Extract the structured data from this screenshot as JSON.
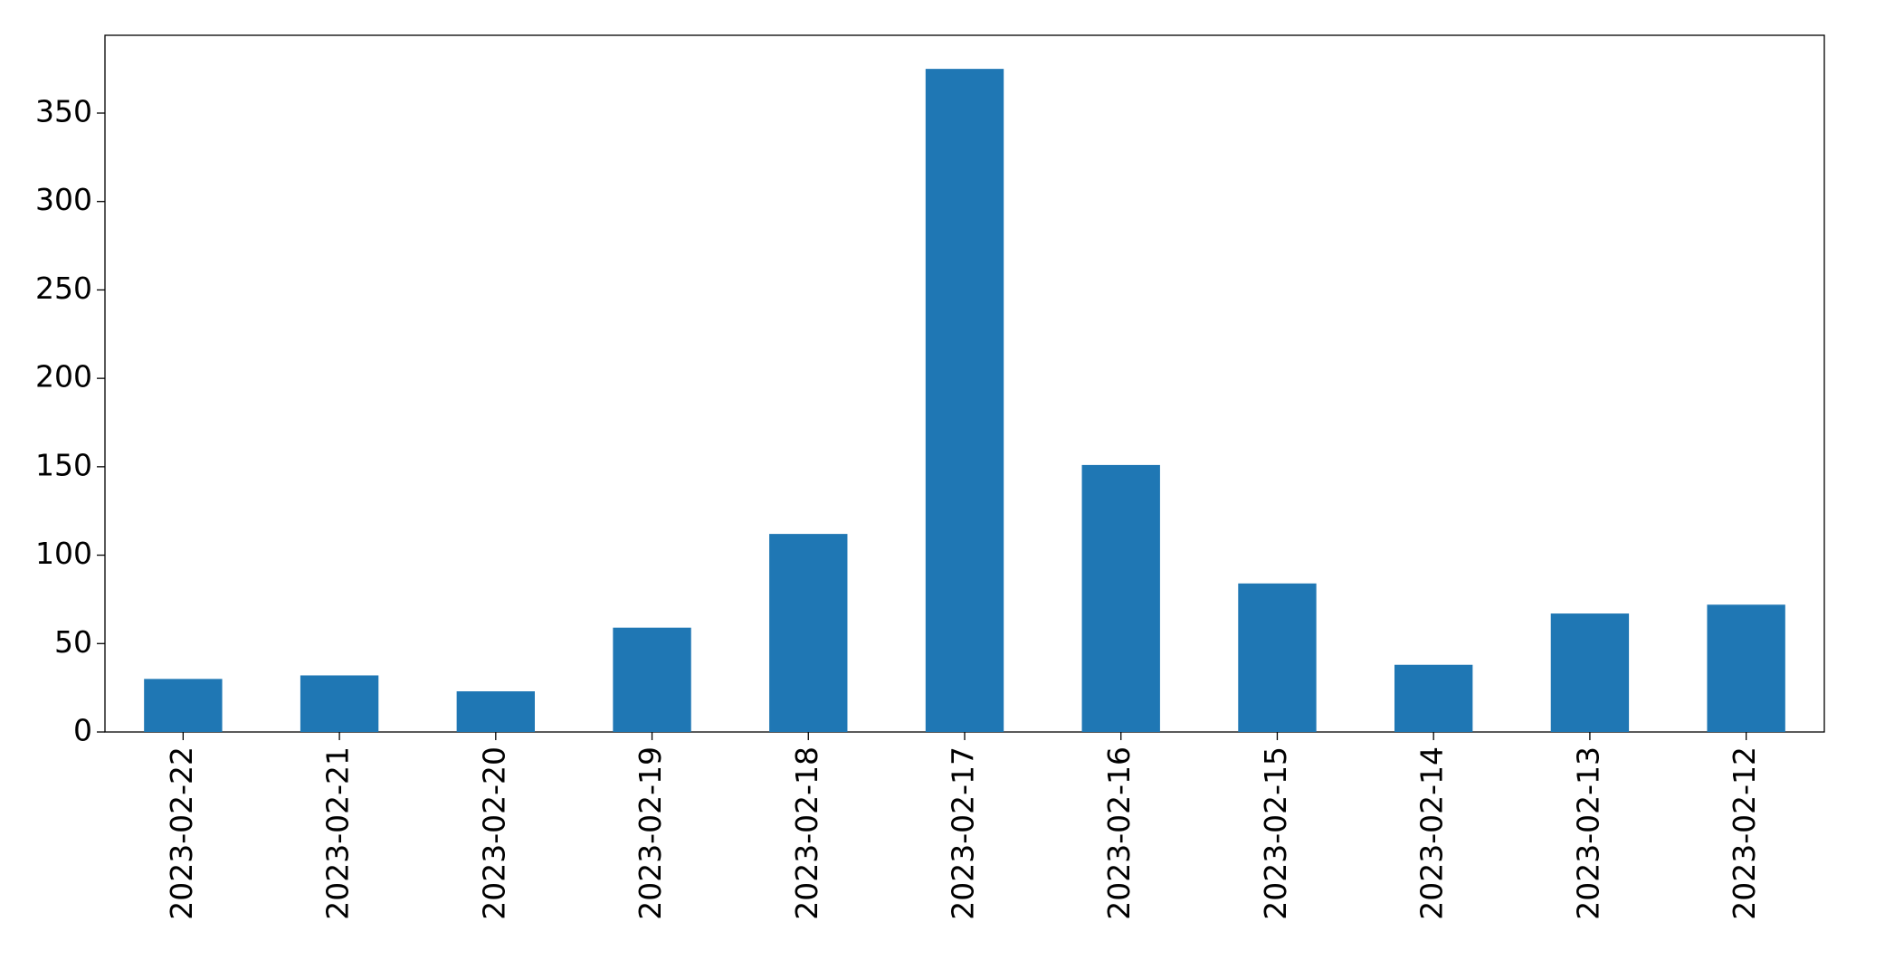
{
  "chart_data": {
    "type": "bar",
    "categories": [
      "2023-02-22",
      "2023-02-21",
      "2023-02-20",
      "2023-02-19",
      "2023-02-18",
      "2023-02-17",
      "2023-02-16",
      "2023-02-15",
      "2023-02-14",
      "2023-02-13",
      "2023-02-12"
    ],
    "values": [
      30,
      32,
      23,
      59,
      112,
      375,
      151,
      84,
      38,
      67,
      72
    ],
    "color": "#1f77b4",
    "ylim": [
      0,
      394
    ],
    "yticks": [
      0,
      50,
      100,
      150,
      200,
      250,
      300,
      350
    ],
    "grid": false
  }
}
